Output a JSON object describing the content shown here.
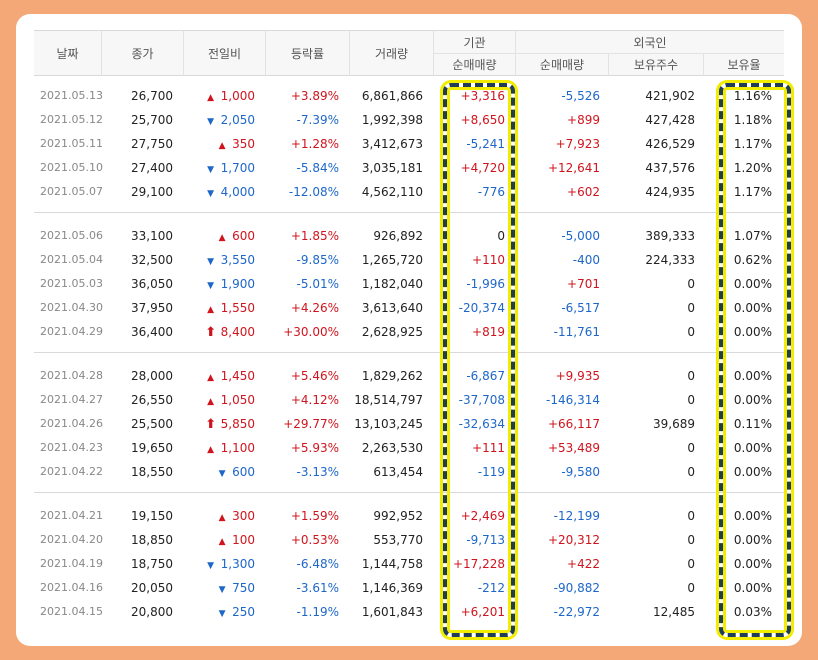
{
  "headers": {
    "date": "날짜",
    "close": "종가",
    "change": "전일비",
    "rate": "등락률",
    "volume": "거래량",
    "institution": "기관",
    "inst_net": "순매매량",
    "foreign": "외국인",
    "frgn_net": "순매매량",
    "frgn_hold": "보유주수",
    "frgn_ratio": "보유율"
  },
  "colors": {
    "up": "#d0141d",
    "down": "#1d67c9",
    "highlight_border": "#1f3d57",
    "highlight_glow": "#f2ec00",
    "background": "#f4a877"
  },
  "rows": [
    {
      "date": "2021.05.13",
      "close": "26,700",
      "dir": "up",
      "change": "1,000",
      "rate": "+3.89%",
      "volume": "6,861,866",
      "inst": "+3,316",
      "frgn": "-5,526",
      "hold": "421,902",
      "ratio": "1.16%"
    },
    {
      "date": "2021.05.12",
      "close": "25,700",
      "dir": "down",
      "change": "2,050",
      "rate": "-7.39%",
      "volume": "1,992,398",
      "inst": "+8,650",
      "frgn": "+899",
      "hold": "427,428",
      "ratio": "1.18%"
    },
    {
      "date": "2021.05.11",
      "close": "27,750",
      "dir": "up",
      "change": "350",
      "rate": "+1.28%",
      "volume": "3,412,673",
      "inst": "-5,241",
      "frgn": "+7,923",
      "hold": "426,529",
      "ratio": "1.17%"
    },
    {
      "date": "2021.05.10",
      "close": "27,400",
      "dir": "down",
      "change": "1,700",
      "rate": "-5.84%",
      "volume": "3,035,181",
      "inst": "+4,720",
      "frgn": "+12,641",
      "hold": "437,576",
      "ratio": "1.20%"
    },
    {
      "date": "2021.05.07",
      "close": "29,100",
      "dir": "down",
      "change": "4,000",
      "rate": "-12.08%",
      "volume": "4,562,110",
      "inst": "-776",
      "frgn": "+602",
      "hold": "424,935",
      "ratio": "1.17%"
    },
    {
      "date": "2021.05.06",
      "close": "33,100",
      "dir": "up",
      "change": "600",
      "rate": "+1.85%",
      "volume": "926,892",
      "inst": "0",
      "frgn": "-5,000",
      "hold": "389,333",
      "ratio": "1.07%"
    },
    {
      "date": "2021.05.04",
      "close": "32,500",
      "dir": "down",
      "change": "3,550",
      "rate": "-9.85%",
      "volume": "1,265,720",
      "inst": "+110",
      "frgn": "-400",
      "hold": "224,333",
      "ratio": "0.62%"
    },
    {
      "date": "2021.05.03",
      "close": "36,050",
      "dir": "down",
      "change": "1,900",
      "rate": "-5.01%",
      "volume": "1,182,040",
      "inst": "-1,996",
      "frgn": "+701",
      "hold": "0",
      "ratio": "0.00%"
    },
    {
      "date": "2021.04.30",
      "close": "37,950",
      "dir": "up",
      "change": "1,550",
      "rate": "+4.26%",
      "volume": "3,613,640",
      "inst": "-20,374",
      "frgn": "-6,517",
      "hold": "0",
      "ratio": "0.00%"
    },
    {
      "date": "2021.04.29",
      "close": "36,400",
      "dir": "limit",
      "change": "8,400",
      "rate": "+30.00%",
      "volume": "2,628,925",
      "inst": "+819",
      "frgn": "-11,761",
      "hold": "0",
      "ratio": "0.00%"
    },
    {
      "date": "2021.04.28",
      "close": "28,000",
      "dir": "up",
      "change": "1,450",
      "rate": "+5.46%",
      "volume": "1,829,262",
      "inst": "-6,867",
      "frgn": "+9,935",
      "hold": "0",
      "ratio": "0.00%"
    },
    {
      "date": "2021.04.27",
      "close": "26,550",
      "dir": "up",
      "change": "1,050",
      "rate": "+4.12%",
      "volume": "18,514,797",
      "inst": "-37,708",
      "frgn": "-146,314",
      "hold": "0",
      "ratio": "0.00%"
    },
    {
      "date": "2021.04.26",
      "close": "25,500",
      "dir": "limit",
      "change": "5,850",
      "rate": "+29.77%",
      "volume": "13,103,245",
      "inst": "-32,634",
      "frgn": "+66,117",
      "hold": "39,689",
      "ratio": "0.11%"
    },
    {
      "date": "2021.04.23",
      "close": "19,650",
      "dir": "up",
      "change": "1,100",
      "rate": "+5.93%",
      "volume": "2,263,530",
      "inst": "+111",
      "frgn": "+53,489",
      "hold": "0",
      "ratio": "0.00%"
    },
    {
      "date": "2021.04.22",
      "close": "18,550",
      "dir": "down",
      "change": "600",
      "rate": "-3.13%",
      "volume": "613,454",
      "inst": "-119",
      "frgn": "-9,580",
      "hold": "0",
      "ratio": "0.00%"
    },
    {
      "date": "2021.04.21",
      "close": "19,150",
      "dir": "up",
      "change": "300",
      "rate": "+1.59%",
      "volume": "992,952",
      "inst": "+2,469",
      "frgn": "-12,199",
      "hold": "0",
      "ratio": "0.00%"
    },
    {
      "date": "2021.04.20",
      "close": "18,850",
      "dir": "up",
      "change": "100",
      "rate": "+0.53%",
      "volume": "553,770",
      "inst": "-9,713",
      "frgn": "+20,312",
      "hold": "0",
      "ratio": "0.00%"
    },
    {
      "date": "2021.04.19",
      "close": "18,750",
      "dir": "down",
      "change": "1,300",
      "rate": "-6.48%",
      "volume": "1,144,758",
      "inst": "+17,228",
      "frgn": "+422",
      "hold": "0",
      "ratio": "0.00%"
    },
    {
      "date": "2021.04.16",
      "close": "20,050",
      "dir": "down",
      "change": "750",
      "rate": "-3.61%",
      "volume": "1,146,369",
      "inst": "-212",
      "frgn": "-90,882",
      "hold": "0",
      "ratio": "0.00%"
    },
    {
      "date": "2021.04.15",
      "close": "20,800",
      "dir": "down",
      "change": "250",
      "rate": "-1.19%",
      "volume": "1,601,843",
      "inst": "+6,201",
      "frgn": "-22,972",
      "hold": "12,485",
      "ratio": "0.03%"
    }
  ]
}
